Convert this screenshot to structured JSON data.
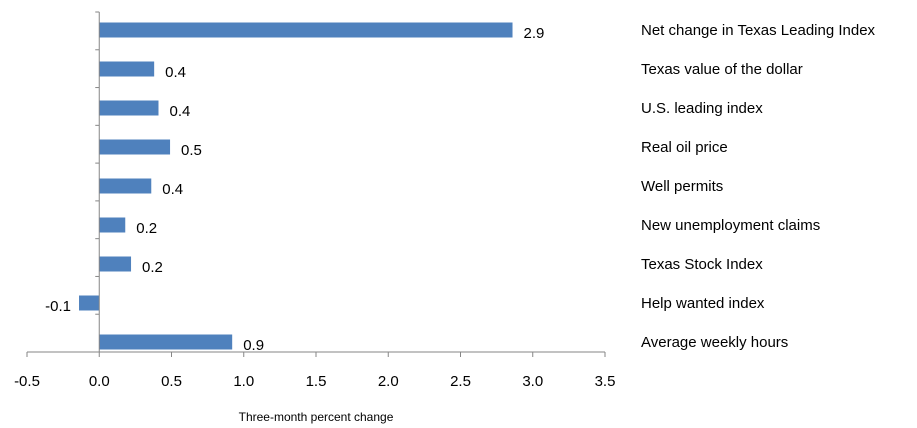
{
  "chart_data": {
    "type": "bar",
    "orientation": "horizontal",
    "categories": [
      "Net change in Texas Leading Index",
      "Texas value of the dollar",
      "U.S. leading index",
      "Real oil price",
      "Well permits",
      "New unemployment claims",
      "Texas Stock Index",
      "Help wanted index",
      "Average weekly hours"
    ],
    "values": [
      2.86,
      0.38,
      0.41,
      0.49,
      0.36,
      0.18,
      0.22,
      -0.14,
      0.92
    ],
    "data_labels": [
      "2.9",
      "0.4",
      "0.4",
      "0.5",
      "0.4",
      "0.2",
      "0.2",
      "-0.1",
      "0.9"
    ],
    "xlabel": "Three-month percent change",
    "xlim": [
      -0.5,
      3.5
    ],
    "x_ticks": [
      "-0.5",
      "0.0",
      "0.5",
      "1.0",
      "1.5",
      "2.0",
      "2.5",
      "3.0",
      "3.5"
    ],
    "x_tick_values": [
      -0.5,
      0,
      0.5,
      1.0,
      1.5,
      2.0,
      2.5,
      3.0,
      3.5
    ],
    "bar_color": "#4F81BD",
    "grid": false,
    "legend": "none"
  }
}
